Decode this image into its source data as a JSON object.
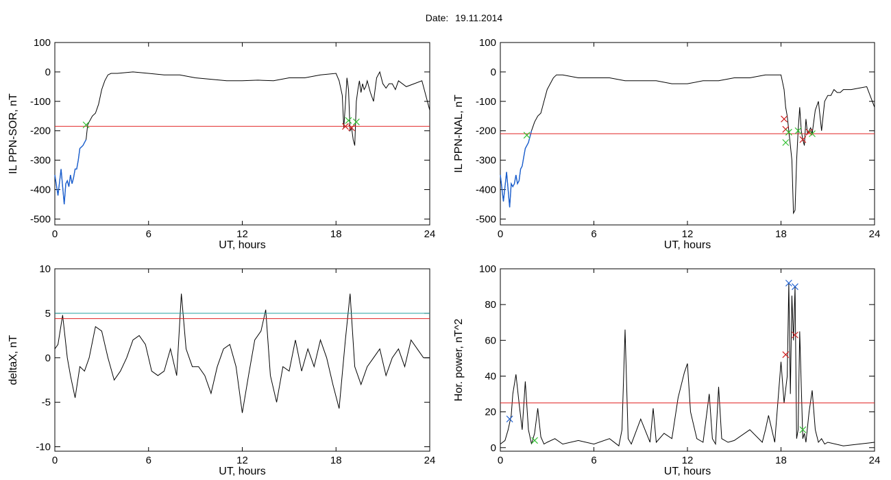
{
  "figure": {
    "title_label": "Date:",
    "title_value": "19.11.2014"
  },
  "colors": {
    "trace": "#000000",
    "threshold": "#e02020",
    "upper_threshold": "#20a0a0",
    "blue_segment": "#1a5fd0",
    "marker_red": "#d02020",
    "marker_green": "#30c030",
    "marker_blue": "#2060d0"
  },
  "chart_data": [
    {
      "id": "sor",
      "type": "line",
      "xlabel": "UT, hours",
      "ylabel": "IL PPN-SOR, nT",
      "xlim": [
        0,
        24
      ],
      "ylim": [
        -520,
        100
      ],
      "xticks": [
        0,
        6,
        12,
        18,
        24
      ],
      "yticks": [
        100,
        0,
        -100,
        -200,
        -300,
        -400,
        -500
      ],
      "thresholds": [
        {
          "y": -185,
          "color": "threshold"
        }
      ],
      "blue_range": [
        0,
        2
      ],
      "series": [
        {
          "x": [
            0,
            0.2,
            0.4,
            0.6,
            0.7,
            0.8,
            0.9,
            1.0,
            1.1,
            1.2,
            1.3,
            1.4,
            1.5,
            1.6,
            1.8,
            2.0,
            2.1,
            2.2,
            2.4,
            2.6,
            2.8,
            3.0,
            3.2,
            3.4,
            3.6,
            4.0,
            5.0,
            6.0,
            7.0,
            8.0,
            9.0,
            10.0,
            11.0,
            12.0,
            13.0,
            14.0,
            15.0,
            16.0,
            17.0,
            18.0,
            18.2,
            18.4,
            18.5,
            18.6,
            18.7,
            18.8,
            18.9,
            19.0,
            19.1,
            19.2,
            19.3,
            19.4,
            19.5,
            19.6,
            19.7,
            19.8,
            19.9,
            20.0,
            20.2,
            20.4,
            20.6,
            20.8,
            21.0,
            21.2,
            21.4,
            21.6,
            21.8,
            22.0,
            22.5,
            23.0,
            23.5,
            24.0
          ],
          "y": [
            -350,
            -420,
            -330,
            -450,
            -380,
            -370,
            -390,
            -350,
            -380,
            -360,
            -330,
            -330,
            -300,
            -260,
            -250,
            -230,
            -180,
            -170,
            -150,
            -140,
            -110,
            -60,
            -30,
            -10,
            -5,
            -5,
            0,
            -5,
            -10,
            -10,
            -20,
            -25,
            -30,
            -30,
            -28,
            -30,
            -20,
            -20,
            -10,
            -5,
            -30,
            -80,
            -190,
            -110,
            -20,
            -60,
            -200,
            -190,
            -230,
            -250,
            -100,
            -60,
            -30,
            -70,
            -40,
            -60,
            -50,
            -30,
            -70,
            -100,
            -20,
            0,
            -40,
            -55,
            -40,
            -40,
            -60,
            -30,
            -50,
            -40,
            -30,
            -130
          ]
        }
      ],
      "markers": [
        {
          "x": 2.0,
          "y": -180,
          "color": "marker_green"
        },
        {
          "x": 18.6,
          "y": -185,
          "color": "marker_red"
        },
        {
          "x": 18.8,
          "y": -165,
          "color": "marker_green"
        },
        {
          "x": 19.0,
          "y": -190,
          "color": "marker_red"
        },
        {
          "x": 19.3,
          "y": -170,
          "color": "marker_green"
        }
      ]
    },
    {
      "id": "nal",
      "type": "line",
      "xlabel": "UT, hours",
      "ylabel": "IL PPN-NAL, nT",
      "xlim": [
        0,
        24
      ],
      "ylim": [
        -520,
        100
      ],
      "xticks": [
        0,
        6,
        12,
        18,
        24
      ],
      "yticks": [
        100,
        0,
        -100,
        -200,
        -300,
        -400,
        -500
      ],
      "thresholds": [
        {
          "y": -210,
          "color": "threshold"
        }
      ],
      "blue_range": [
        0,
        2
      ],
      "series": [
        {
          "x": [
            0,
            0.2,
            0.4,
            0.6,
            0.7,
            0.8,
            0.9,
            1.0,
            1.1,
            1.2,
            1.3,
            1.4,
            1.5,
            1.6,
            1.8,
            2.0,
            2.2,
            2.4,
            2.6,
            2.8,
            3.0,
            3.2,
            3.4,
            3.6,
            4.0,
            5.0,
            6.0,
            7.0,
            8.0,
            9.0,
            10.0,
            11.0,
            12.0,
            13.0,
            14.0,
            15.0,
            16.0,
            17.0,
            18.0,
            18.2,
            18.3,
            18.4,
            18.5,
            18.6,
            18.7,
            18.8,
            18.9,
            19.0,
            19.1,
            19.2,
            19.3,
            19.4,
            19.5,
            19.6,
            19.7,
            19.8,
            19.9,
            20.0,
            20.2,
            20.4,
            20.6,
            20.8,
            21.0,
            21.2,
            21.4,
            21.6,
            21.8,
            22.0,
            22.5,
            23.0,
            23.5,
            24.0
          ],
          "y": [
            -350,
            -440,
            -340,
            -460,
            -380,
            -390,
            -380,
            -350,
            -380,
            -370,
            -330,
            -320,
            -290,
            -260,
            -240,
            -200,
            -170,
            -150,
            -140,
            -100,
            -60,
            -40,
            -20,
            -10,
            -10,
            -20,
            -20,
            -20,
            -30,
            -30,
            -30,
            -40,
            -40,
            -30,
            -30,
            -20,
            -20,
            -10,
            -10,
            -60,
            -120,
            -150,
            -200,
            -250,
            -300,
            -480,
            -470,
            -300,
            -200,
            -120,
            -200,
            -230,
            -250,
            -160,
            -210,
            -200,
            -190,
            -210,
            -130,
            -100,
            -200,
            -100,
            -80,
            -80,
            -60,
            -70,
            -70,
            -60,
            -60,
            -55,
            -50,
            -120
          ]
        }
      ],
      "markers": [
        {
          "x": 1.7,
          "y": -215,
          "color": "marker_green"
        },
        {
          "x": 18.2,
          "y": -160,
          "color": "marker_red"
        },
        {
          "x": 18.3,
          "y": -195,
          "color": "marker_red"
        },
        {
          "x": 18.3,
          "y": -240,
          "color": "marker_green"
        },
        {
          "x": 18.5,
          "y": -205,
          "color": "marker_green"
        },
        {
          "x": 19.1,
          "y": -200,
          "color": "marker_green"
        },
        {
          "x": 19.4,
          "y": -230,
          "color": "marker_red"
        },
        {
          "x": 19.8,
          "y": -205,
          "color": "marker_red"
        },
        {
          "x": 20.0,
          "y": -210,
          "color": "marker_green"
        }
      ]
    },
    {
      "id": "deltax",
      "type": "line",
      "xlabel": "UT, hours",
      "ylabel": "deltaX, nT",
      "xlim": [
        0,
        24
      ],
      "ylim": [
        -10.5,
        10
      ],
      "xticks": [
        0,
        6,
        12,
        18,
        24
      ],
      "yticks": [
        10,
        5,
        0,
        -5,
        -10
      ],
      "thresholds": [
        {
          "y": 5.0,
          "color": "upper_threshold"
        },
        {
          "y": 4.4,
          "color": "threshold"
        }
      ],
      "series": [
        {
          "x": [
            0,
            0.2,
            0.5,
            0.8,
            1.0,
            1.3,
            1.6,
            1.9,
            2.2,
            2.6,
            3.0,
            3.4,
            3.8,
            4.2,
            4.6,
            5.0,
            5.4,
            5.8,
            6.2,
            6.6,
            7.0,
            7.4,
            7.8,
            8.1,
            8.4,
            8.8,
            9.2,
            9.6,
            10.0,
            10.4,
            10.8,
            11.2,
            11.6,
            12.0,
            12.4,
            12.8,
            13.2,
            13.5,
            13.8,
            14.2,
            14.6,
            15.0,
            15.4,
            15.8,
            16.2,
            16.6,
            17.0,
            17.4,
            17.8,
            18.2,
            18.6,
            18.9,
            19.2,
            19.6,
            20.0,
            20.4,
            20.8,
            21.2,
            21.6,
            22.0,
            22.4,
            22.8,
            23.2,
            23.6,
            24.0
          ],
          "y": [
            1,
            1.5,
            4.8,
            0,
            -2,
            -4.5,
            -1,
            -1.5,
            0,
            3.5,
            3,
            0,
            -2.5,
            -1.5,
            0,
            2,
            2.5,
            1.5,
            -1.5,
            -2,
            -1.5,
            1,
            -2,
            7.2,
            1,
            -1,
            -1,
            -2,
            -4,
            -1,
            1,
            1.5,
            -1,
            -6.2,
            -2,
            2,
            3,
            5.4,
            -2,
            -5,
            -1,
            -1.5,
            2,
            -1.5,
            1,
            -1,
            2,
            0,
            -3,
            -5.7,
            2,
            7.2,
            -1,
            -3,
            -1,
            0,
            1,
            -2,
            0,
            1,
            -1,
            2,
            1,
            0,
            0
          ]
        }
      ],
      "markers": []
    },
    {
      "id": "power",
      "type": "line",
      "xlabel": "UT, hours",
      "ylabel": "Hor. power, nT^2",
      "xlim": [
        0,
        24
      ],
      "ylim": [
        -2,
        100
      ],
      "xticks": [
        0,
        6,
        12,
        18,
        24
      ],
      "yticks": [
        100,
        80,
        60,
        40,
        20,
        0
      ],
      "thresholds": [
        {
          "y": 25,
          "color": "threshold"
        }
      ],
      "series": [
        {
          "x": [
            0,
            0.3,
            0.5,
            0.7,
            0.8,
            1.0,
            1.2,
            1.4,
            1.6,
            1.8,
            2.0,
            2.2,
            2.4,
            2.6,
            2.8,
            3.0,
            3.5,
            4.0,
            5.0,
            6.0,
            7.0,
            7.6,
            7.8,
            8.0,
            8.2,
            8.4,
            9.0,
            9.6,
            9.8,
            10.0,
            10.5,
            11.0,
            11.4,
            11.8,
            12.0,
            12.2,
            12.6,
            13.0,
            13.4,
            13.6,
            13.8,
            14.0,
            14.2,
            14.6,
            15.0,
            16.0,
            16.8,
            17.0,
            17.2,
            17.6,
            18.0,
            18.2,
            18.4,
            18.5,
            18.6,
            18.7,
            18.8,
            18.9,
            19.0,
            19.1,
            19.2,
            19.4,
            19.5,
            19.6,
            19.8,
            20.0,
            20.2,
            20.4,
            20.6,
            20.8,
            21.0,
            22.0,
            23.0,
            24.0
          ],
          "y": [
            2,
            4,
            10,
            18,
            30,
            41,
            25,
            10,
            37,
            10,
            2,
            8,
            22,
            6,
            2,
            3,
            5,
            2,
            4,
            2,
            5,
            1,
            10,
            66,
            5,
            2,
            16,
            3,
            22,
            3,
            8,
            5,
            28,
            42,
            47,
            20,
            5,
            3,
            30,
            5,
            2,
            34,
            5,
            3,
            4,
            10,
            3,
            10,
            18,
            3,
            48,
            25,
            40,
            92,
            30,
            85,
            60,
            90,
            5,
            10,
            65,
            5,
            8,
            3,
            20,
            32,
            10,
            3,
            5,
            2,
            3,
            1,
            2,
            3
          ]
        }
      ],
      "markers": [
        {
          "x": 0.6,
          "y": 16,
          "color": "marker_blue"
        },
        {
          "x": 2.2,
          "y": 4,
          "color": "marker_green"
        },
        {
          "x": 18.3,
          "y": 52,
          "color": "marker_red"
        },
        {
          "x": 18.5,
          "y": 92,
          "color": "marker_blue"
        },
        {
          "x": 18.9,
          "y": 90,
          "color": "marker_blue"
        },
        {
          "x": 18.9,
          "y": 63,
          "color": "marker_red"
        },
        {
          "x": 19.4,
          "y": 10,
          "color": "marker_green"
        }
      ]
    }
  ]
}
